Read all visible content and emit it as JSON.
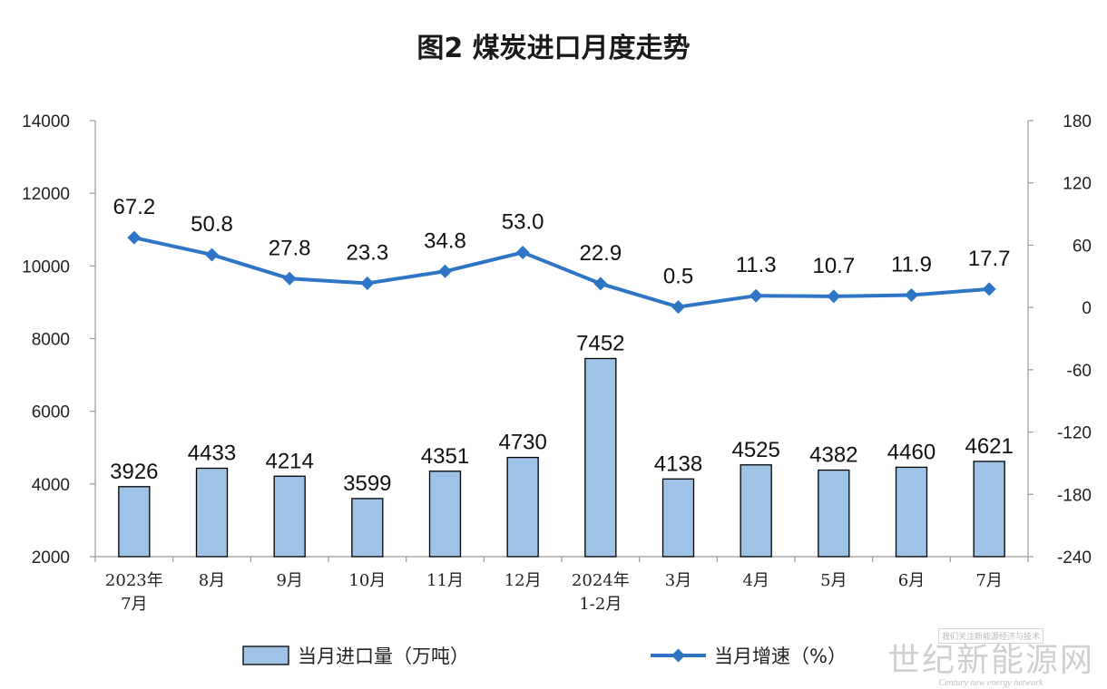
{
  "chart_data": {
    "type": "bar+line",
    "title": "图2  煤炭进口月度走势",
    "categories": [
      [
        "2023年",
        "7月"
      ],
      [
        "8月"
      ],
      [
        "9月"
      ],
      [
        "10月"
      ],
      [
        "11月"
      ],
      [
        "12月"
      ],
      [
        "2024年",
        "1-2月"
      ],
      [
        "3月"
      ],
      [
        "4月"
      ],
      [
        "5月"
      ],
      [
        "6月"
      ],
      [
        "7月"
      ]
    ],
    "series": [
      {
        "name": "当月进口量（万吨）",
        "type": "bar",
        "axis": "left",
        "values": [
          3926,
          4433,
          4214,
          3599,
          4351,
          4730,
          7452,
          4138,
          4525,
          4382,
          4460,
          4621
        ],
        "labels": [
          "3926",
          "4433",
          "4214",
          "3599",
          "4351",
          "4730",
          "7452",
          "4138",
          "4525",
          "4382",
          "4460",
          "4621"
        ]
      },
      {
        "name": "当月增速（%）",
        "type": "line",
        "axis": "right",
        "values": [
          67.2,
          50.8,
          27.8,
          23.3,
          34.8,
          53.0,
          22.9,
          0.5,
          11.3,
          10.7,
          11.9,
          17.7
        ],
        "labels": [
          "67.2",
          "50.8",
          "27.8",
          "23.3",
          "34.8",
          "53.0",
          "22.9",
          "0.5",
          "11.3",
          "10.7",
          "11.9",
          "17.7"
        ]
      }
    ],
    "y_left": {
      "range": [
        2000,
        14000
      ],
      "ticks": [
        2000,
        4000,
        6000,
        8000,
        10000,
        12000,
        14000
      ],
      "tick_labels": [
        "2000",
        "4000",
        "6000",
        "8000",
        "10000",
        "12000",
        "14000"
      ]
    },
    "y_right": {
      "range": [
        -240,
        180
      ],
      "ticks": [
        -240,
        -180,
        -120,
        -60,
        0,
        60,
        120,
        180
      ],
      "tick_labels": [
        "-240",
        "-180",
        "-120",
        "-60",
        "0",
        "60",
        "120",
        "180"
      ]
    },
    "grid": false,
    "legend_position": "bottom",
    "colors": {
      "bar_fill": "#9dc3e6",
      "bar_stroke": "#000000",
      "line": "#2e75c6",
      "axis": "#9a9a9a"
    }
  },
  "watermark": {
    "top": "我们关注新能源经济与技术",
    "main": "世纪新能源网",
    "sub": "Century new energy network"
  }
}
